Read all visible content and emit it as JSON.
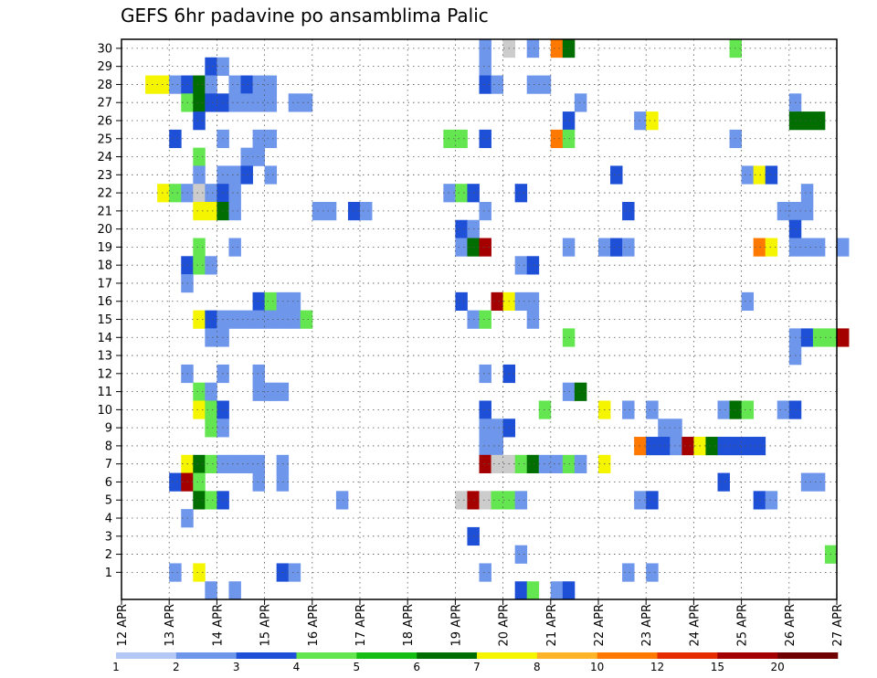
{
  "chart_data": {
    "type": "heatmap",
    "title": "GEFS 6hr padavine po ansamblima Palic",
    "xlabel": "",
    "ylabel": "",
    "x_ticks": [
      "12 APR",
      "13 APR",
      "14 APR",
      "15 APR",
      "16 APR",
      "17 APR",
      "18 APR",
      "19 APR",
      "20 APR",
      "21 APR",
      "22 APR",
      "23 APR",
      "24 APR",
      "25 APR",
      "26 APR",
      "27 APR"
    ],
    "x_range": [
      "12 APR 00Z",
      "27 APR 00Z"
    ],
    "time_step_hours": 6,
    "y_ticks": [
      "1",
      "2",
      "3",
      "4",
      "5",
      "6",
      "7",
      "8",
      "9",
      "10",
      "11",
      "12",
      "13",
      "14",
      "15",
      "16",
      "17",
      "18",
      "19",
      "20",
      "21",
      "22",
      "23",
      "24",
      "25",
      "26",
      "27",
      "28",
      "29",
      "30"
    ],
    "y_range": [
      0,
      30
    ],
    "grid": "dotted",
    "color_levels": [
      "1",
      "2",
      "3",
      "4",
      "5",
      "6",
      "7",
      "8",
      "10",
      "12",
      "15",
      "20"
    ],
    "color_scale": [
      "#b4c8f5",
      "#6e96eb",
      "#1e50d7",
      "#64e650",
      "#14be14",
      "#006e00",
      "#f5f500",
      "#ffb428",
      "#ff7800",
      "#e62d00",
      "#a50000",
      "#6e0000"
    ],
    "cells": [
      [
        30,
        19.5,
        1
      ],
      [
        30,
        20.0,
        12
      ],
      [
        30,
        20.5,
        1
      ],
      [
        30,
        21.0,
        8
      ],
      [
        30,
        21.25,
        5
      ],
      [
        30,
        24.75,
        3
      ],
      [
        29,
        13.75,
        2
      ],
      [
        29,
        14.0,
        1
      ],
      [
        29,
        19.5,
        1
      ],
      [
        28,
        12.5,
        6
      ],
      [
        28,
        12.75,
        6
      ],
      [
        28,
        13.0,
        1
      ],
      [
        28,
        13.25,
        2
      ],
      [
        28,
        13.5,
        5
      ],
      [
        28,
        13.75,
        1
      ],
      [
        28,
        14.25,
        1
      ],
      [
        28,
        14.5,
        2
      ],
      [
        28,
        14.75,
        1
      ],
      [
        28,
        15.0,
        1
      ],
      [
        28,
        19.5,
        2
      ],
      [
        28,
        19.75,
        1
      ],
      [
        28,
        20.5,
        1
      ],
      [
        28,
        20.75,
        1
      ],
      [
        27,
        13.25,
        3
      ],
      [
        27,
        13.5,
        5
      ],
      [
        27,
        13.75,
        2
      ],
      [
        27,
        14.0,
        2
      ],
      [
        27,
        14.25,
        1
      ],
      [
        27,
        14.5,
        1
      ],
      [
        27,
        14.75,
        1
      ],
      [
        27,
        15.0,
        1
      ],
      [
        27,
        15.5,
        1
      ],
      [
        27,
        15.75,
        1
      ],
      [
        27,
        21.5,
        1
      ],
      [
        27,
        26.0,
        1
      ],
      [
        26,
        13.5,
        2
      ],
      [
        26,
        21.25,
        2
      ],
      [
        26,
        22.75,
        1
      ],
      [
        26,
        23.0,
        6
      ],
      [
        26,
        26.0,
        5
      ],
      [
        26,
        26.25,
        5
      ],
      [
        26,
        26.5,
        5
      ],
      [
        25,
        13.0,
        2
      ],
      [
        25,
        14.0,
        1
      ],
      [
        25,
        14.75,
        1
      ],
      [
        25,
        15.0,
        1
      ],
      [
        25,
        18.75,
        3
      ],
      [
        25,
        19.0,
        3
      ],
      [
        25,
        19.5,
        2
      ],
      [
        25,
        21.0,
        8
      ],
      [
        25,
        21.25,
        3
      ],
      [
        25,
        24.75,
        1
      ],
      [
        24,
        13.5,
        3
      ],
      [
        24,
        14.5,
        1
      ],
      [
        24,
        14.75,
        1
      ],
      [
        23,
        13.5,
        1
      ],
      [
        23,
        14.0,
        1
      ],
      [
        23,
        14.25,
        1
      ],
      [
        23,
        14.5,
        2
      ],
      [
        23,
        15.0,
        1
      ],
      [
        23,
        22.25,
        2
      ],
      [
        23,
        25.0,
        1
      ],
      [
        23,
        25.25,
        6
      ],
      [
        23,
        25.5,
        2
      ],
      [
        22,
        12.75,
        6
      ],
      [
        22,
        13.0,
        3
      ],
      [
        22,
        13.25,
        1
      ],
      [
        22,
        13.5,
        12
      ],
      [
        22,
        13.75,
        1
      ],
      [
        22,
        14.0,
        2
      ],
      [
        22,
        14.25,
        1
      ],
      [
        22,
        18.75,
        1
      ],
      [
        22,
        19.0,
        3
      ],
      [
        22,
        19.25,
        2
      ],
      [
        22,
        20.25,
        2
      ],
      [
        22,
        26.25,
        1
      ],
      [
        21,
        13.5,
        6
      ],
      [
        21,
        13.75,
        6
      ],
      [
        21,
        14.0,
        5
      ],
      [
        21,
        14.25,
        1
      ],
      [
        21,
        16.0,
        1
      ],
      [
        21,
        16.25,
        1
      ],
      [
        21,
        16.75,
        2
      ],
      [
        21,
        17.0,
        1
      ],
      [
        21,
        19.5,
        1
      ],
      [
        21,
        22.5,
        2
      ],
      [
        21,
        25.75,
        1
      ],
      [
        21,
        26.0,
        1
      ],
      [
        21,
        26.25,
        1
      ],
      [
        20,
        19.0,
        2
      ],
      [
        20,
        19.25,
        1
      ],
      [
        20,
        26.0,
        2
      ],
      [
        19,
        13.5,
        3
      ],
      [
        19,
        14.25,
        1
      ],
      [
        19,
        19.0,
        1
      ],
      [
        19,
        19.25,
        5
      ],
      [
        19,
        19.5,
        10
      ],
      [
        19,
        21.25,
        1
      ],
      [
        19,
        22.0,
        1
      ],
      [
        19,
        22.25,
        2
      ],
      [
        19,
        22.5,
        1
      ],
      [
        19,
        25.25,
        8
      ],
      [
        19,
        25.5,
        6
      ],
      [
        19,
        26.0,
        1
      ],
      [
        19,
        26.25,
        1
      ],
      [
        19,
        26.5,
        1
      ],
      [
        19,
        27.0,
        1
      ],
      [
        18,
        13.25,
        2
      ],
      [
        18,
        13.5,
        3
      ],
      [
        18,
        13.75,
        1
      ],
      [
        18,
        20.25,
        1
      ],
      [
        18,
        20.5,
        2
      ],
      [
        17,
        13.25,
        1
      ],
      [
        16,
        14.75,
        2
      ],
      [
        16,
        15.0,
        3
      ],
      [
        16,
        15.25,
        1
      ],
      [
        16,
        15.5,
        1
      ],
      [
        16,
        19.0,
        2
      ],
      [
        16,
        19.75,
        10
      ],
      [
        16,
        20.0,
        6
      ],
      [
        16,
        20.25,
        1
      ],
      [
        16,
        20.5,
        1
      ],
      [
        16,
        25.0,
        1
      ],
      [
        15,
        13.5,
        6
      ],
      [
        15,
        13.75,
        2
      ],
      [
        15,
        14.0,
        1
      ],
      [
        15,
        14.25,
        1
      ],
      [
        15,
        14.5,
        1
      ],
      [
        15,
        14.75,
        1
      ],
      [
        15,
        15.0,
        1
      ],
      [
        15,
        15.25,
        1
      ],
      [
        15,
        15.5,
        1
      ],
      [
        15,
        15.75,
        3
      ],
      [
        15,
        19.25,
        1
      ],
      [
        15,
        19.5,
        3
      ],
      [
        15,
        20.5,
        1
      ],
      [
        14,
        13.75,
        1
      ],
      [
        14,
        14.0,
        1
      ],
      [
        14,
        21.25,
        3
      ],
      [
        14,
        26.0,
        1
      ],
      [
        14,
        26.25,
        2
      ],
      [
        14,
        26.5,
        3
      ],
      [
        14,
        26.75,
        3
      ],
      [
        14,
        27.0,
        10
      ],
      [
        13,
        26.0,
        1
      ],
      [
        12,
        13.25,
        1
      ],
      [
        12,
        14.0,
        1
      ],
      [
        12,
        14.75,
        1
      ],
      [
        12,
        19.5,
        1
      ],
      [
        12,
        20.0,
        2
      ],
      [
        11,
        13.5,
        3
      ],
      [
        11,
        13.75,
        1
      ],
      [
        11,
        14.75,
        1
      ],
      [
        11,
        15.0,
        1
      ],
      [
        11,
        15.25,
        1
      ],
      [
        11,
        21.25,
        1
      ],
      [
        11,
        21.5,
        5
      ],
      [
        10,
        13.5,
        6
      ],
      [
        10,
        13.75,
        3
      ],
      [
        10,
        14.0,
        2
      ],
      [
        10,
        19.5,
        2
      ],
      [
        10,
        20.75,
        3
      ],
      [
        10,
        22.0,
        6
      ],
      [
        10,
        22.5,
        1
      ],
      [
        10,
        23.0,
        1
      ],
      [
        10,
        24.5,
        1
      ],
      [
        10,
        24.75,
        5
      ],
      [
        10,
        25.0,
        3
      ],
      [
        10,
        25.75,
        1
      ],
      [
        10,
        26.0,
        2
      ],
      [
        9,
        13.75,
        3
      ],
      [
        9,
        14.0,
        1
      ],
      [
        9,
        19.5,
        1
      ],
      [
        9,
        19.75,
        1
      ],
      [
        9,
        20.0,
        2
      ],
      [
        9,
        23.25,
        1
      ],
      [
        9,
        23.5,
        1
      ],
      [
        8,
        19.5,
        1
      ],
      [
        8,
        19.75,
        1
      ],
      [
        8,
        22.75,
        8
      ],
      [
        8,
        23.0,
        2
      ],
      [
        8,
        23.25,
        2
      ],
      [
        8,
        23.5,
        1
      ],
      [
        8,
        23.75,
        10
      ],
      [
        8,
        24.0,
        6
      ],
      [
        8,
        24.25,
        5
      ],
      [
        8,
        24.5,
        2
      ],
      [
        8,
        24.75,
        2
      ],
      [
        8,
        25.0,
        2
      ],
      [
        8,
        25.25,
        2
      ],
      [
        7,
        13.25,
        6
      ],
      [
        7,
        13.5,
        5
      ],
      [
        7,
        13.75,
        3
      ],
      [
        7,
        14.0,
        1
      ],
      [
        7,
        14.25,
        1
      ],
      [
        7,
        14.5,
        1
      ],
      [
        7,
        14.75,
        1
      ],
      [
        7,
        15.25,
        1
      ],
      [
        7,
        19.5,
        10
      ],
      [
        7,
        19.75,
        15
      ],
      [
        7,
        20.0,
        20
      ],
      [
        7,
        20.25,
        3
      ],
      [
        7,
        20.5,
        5
      ],
      [
        7,
        20.75,
        1
      ],
      [
        7,
        21.0,
        1
      ],
      [
        7,
        21.25,
        3
      ],
      [
        7,
        21.5,
        1
      ],
      [
        7,
        22.0,
        6
      ],
      [
        6,
        13.0,
        2
      ],
      [
        6,
        13.25,
        10
      ],
      [
        6,
        13.5,
        3
      ],
      [
        6,
        14.75,
        1
      ],
      [
        6,
        15.25,
        1
      ],
      [
        6,
        24.5,
        2
      ],
      [
        6,
        26.25,
        1
      ],
      [
        6,
        26.5,
        1
      ],
      [
        5,
        13.5,
        5
      ],
      [
        5,
        13.75,
        3
      ],
      [
        5,
        14.0,
        2
      ],
      [
        5,
        16.5,
        1
      ],
      [
        5,
        19.0,
        12
      ],
      [
        5,
        19.25,
        10
      ],
      [
        5,
        19.5,
        12
      ],
      [
        5,
        19.75,
        3
      ],
      [
        5,
        20.0,
        3
      ],
      [
        5,
        20.25,
        1
      ],
      [
        5,
        22.75,
        1
      ],
      [
        5,
        23.0,
        2
      ],
      [
        5,
        25.25,
        2
      ],
      [
        5,
        25.5,
        1
      ],
      [
        4,
        13.25,
        1
      ],
      [
        3,
        19.25,
        2
      ],
      [
        2,
        20.25,
        1
      ],
      [
        2,
        26.75,
        3
      ],
      [
        1,
        13.0,
        1
      ],
      [
        1,
        13.5,
        6
      ],
      [
        1,
        15.25,
        2
      ],
      [
        1,
        15.5,
        1
      ],
      [
        1,
        19.5,
        1
      ],
      [
        1,
        22.5,
        1
      ],
      [
        1,
        23.0,
        1
      ],
      [
        0,
        13.75,
        1
      ],
      [
        0,
        14.25,
        1
      ],
      [
        0,
        20.25,
        2
      ],
      [
        0,
        20.5,
        3
      ],
      [
        0,
        21.0,
        1
      ],
      [
        0,
        21.25,
        2
      ]
    ]
  }
}
